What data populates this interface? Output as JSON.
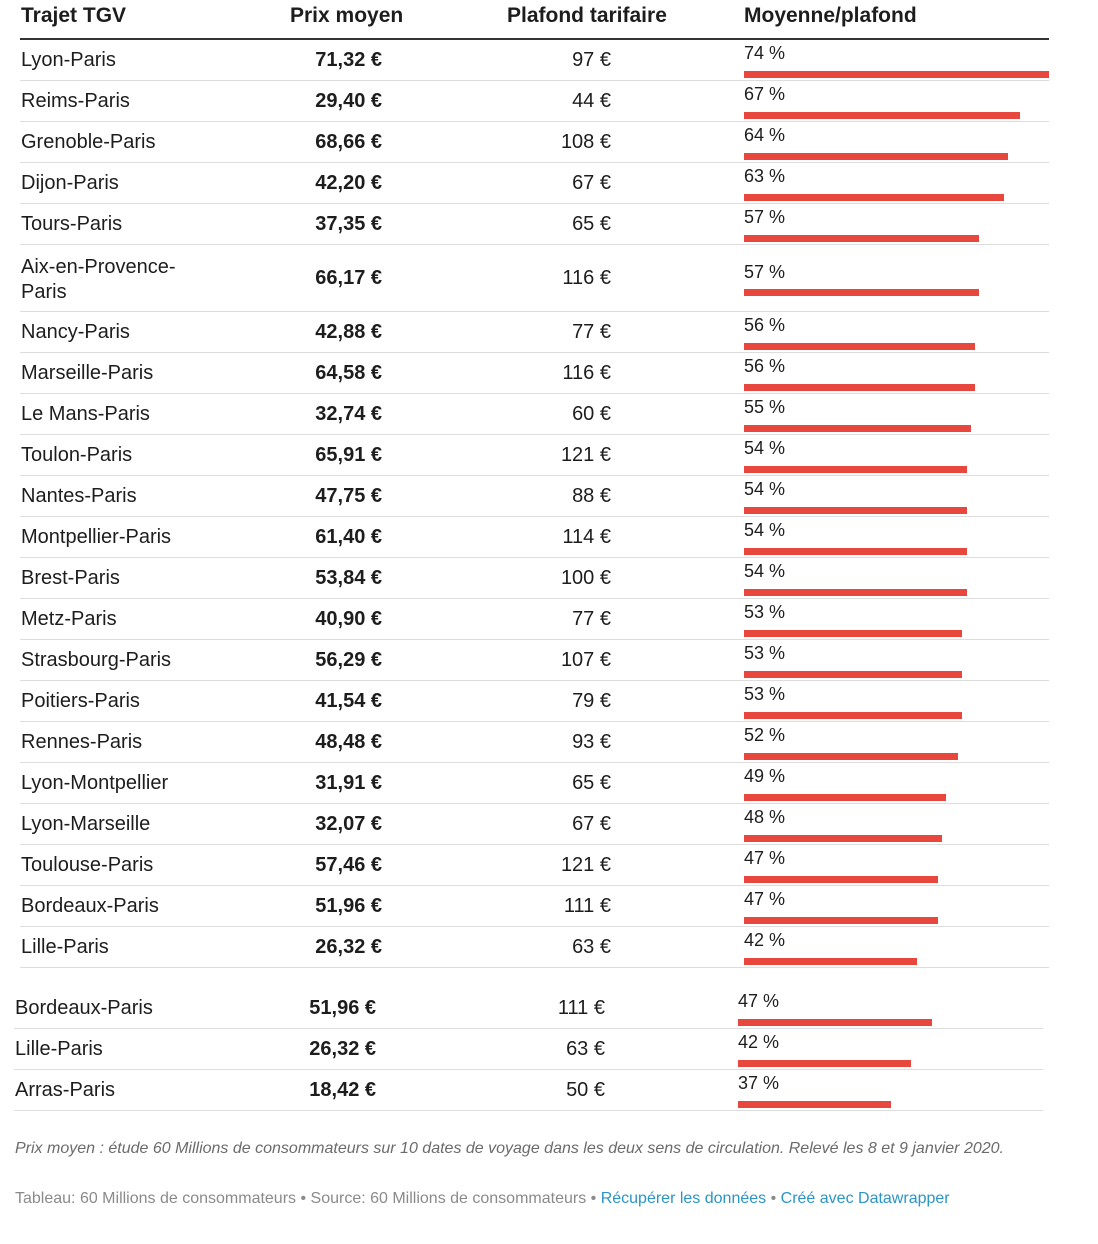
{
  "chart_data": {
    "type": "table",
    "columns": [
      "Trajet TGV",
      "Prix moyen",
      "Plafond tarifaire",
      "Moyenne/plafond"
    ],
    "bar_color": "#e8473e",
    "rows": [
      {
        "route": "Lyon-Paris",
        "prix": "71,32 €",
        "plafond": "97 €",
        "ratio": 74,
        "ratio_label": "74 %"
      },
      {
        "route": "Reims-Paris",
        "prix": "29,40 €",
        "plafond": "44 €",
        "ratio": 67,
        "ratio_label": "67 %"
      },
      {
        "route": "Grenoble-Paris",
        "prix": "68,66 €",
        "plafond": "108 €",
        "ratio": 64,
        "ratio_label": "64 %"
      },
      {
        "route": "Dijon-Paris",
        "prix": "42,20 €",
        "plafond": "67 €",
        "ratio": 63,
        "ratio_label": "63 %"
      },
      {
        "route": "Tours-Paris",
        "prix": "37,35 €",
        "plafond": "65 €",
        "ratio": 57,
        "ratio_label": "57 %"
      },
      {
        "route": "Aix-en-Provence-Paris",
        "prix": "66,17 €",
        "plafond": "116 €",
        "ratio": 57,
        "ratio_label": "57 %"
      },
      {
        "route": "Nancy-Paris",
        "prix": "42,88 €",
        "plafond": "77 €",
        "ratio": 56,
        "ratio_label": "56 %"
      },
      {
        "route": "Marseille-Paris",
        "prix": "64,58 €",
        "plafond": "116 €",
        "ratio": 56,
        "ratio_label": "56 %"
      },
      {
        "route": "Le Mans-Paris",
        "prix": "32,74 €",
        "plafond": "60 €",
        "ratio": 55,
        "ratio_label": "55 %"
      },
      {
        "route": "Toulon-Paris",
        "prix": "65,91 €",
        "plafond": "121 €",
        "ratio": 54,
        "ratio_label": "54 %"
      },
      {
        "route": "Nantes-Paris",
        "prix": "47,75 €",
        "plafond": "88 €",
        "ratio": 54,
        "ratio_label": "54 %"
      },
      {
        "route": "Montpellier-Paris",
        "prix": "61,40 €",
        "plafond": "114 €",
        "ratio": 54,
        "ratio_label": "54 %"
      },
      {
        "route": "Brest-Paris",
        "prix": "53,84 €",
        "plafond": "100 €",
        "ratio": 54,
        "ratio_label": "54 %"
      },
      {
        "route": "Metz-Paris",
        "prix": "40,90 €",
        "plafond": "77 €",
        "ratio": 53,
        "ratio_label": "53 %"
      },
      {
        "route": "Strasbourg-Paris",
        "prix": "56,29 €",
        "plafond": "107 €",
        "ratio": 53,
        "ratio_label": "53 %"
      },
      {
        "route": "Poitiers-Paris",
        "prix": "41,54 €",
        "plafond": "79 €",
        "ratio": 53,
        "ratio_label": "53 %"
      },
      {
        "route": "Rennes-Paris",
        "prix": "48,48 €",
        "plafond": "93 €",
        "ratio": 52,
        "ratio_label": "52 %"
      },
      {
        "route": "Lyon-Montpellier",
        "prix": "31,91 €",
        "plafond": "65 €",
        "ratio": 49,
        "ratio_label": "49 %"
      },
      {
        "route": "Lyon-Marseille",
        "prix": "32,07 €",
        "plafond": "67 €",
        "ratio": 48,
        "ratio_label": "48 %"
      },
      {
        "route": "Toulouse-Paris",
        "prix": "57,46 €",
        "plafond": "121 €",
        "ratio": 47,
        "ratio_label": "47 %"
      },
      {
        "route": "Bordeaux-Paris",
        "prix": "51,96 €",
        "plafond": "111 €",
        "ratio": 47,
        "ratio_label": "47 %"
      },
      {
        "route": "Lille-Paris",
        "prix": "26,32 €",
        "plafond": "63 €",
        "ratio": 42,
        "ratio_label": "42 %"
      }
    ],
    "extra_rows": [
      {
        "route": "Bordeaux-Paris",
        "prix": "51,96 €",
        "plafond": "111 €",
        "ratio": 47,
        "ratio_label": "47 %"
      },
      {
        "route": "Lille-Paris",
        "prix": "26,32 €",
        "plafond": "63 €",
        "ratio": 42,
        "ratio_label": "42 %"
      },
      {
        "route": "Arras-Paris",
        "prix": "18,42 €",
        "plafond": "50 €",
        "ratio": 37,
        "ratio_label": "37 %"
      }
    ]
  },
  "note": "Prix moyen : étude 60 Millions de consommateurs sur 10 dates de voyage dans les deux sens de circulation. Relevé les 8 et 9 janvier 2020.",
  "footer": {
    "text": "Tableau: 60 Millions de consommateurs • Source: 60 Millions de consommateurs • ",
    "link1": "Récupérer les données",
    "sep": " • ",
    "link2": "Créé avec Datawrapper"
  }
}
